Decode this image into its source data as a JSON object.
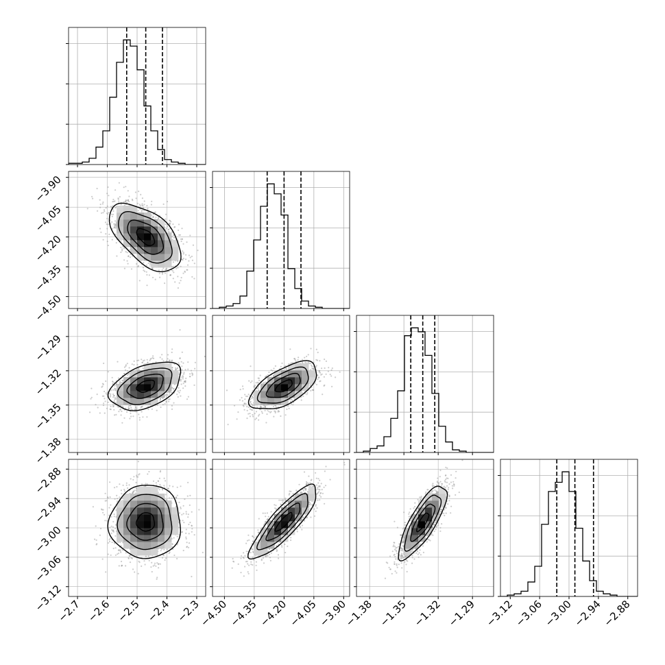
{
  "chart_data": {
    "type": "corner",
    "parameters": [
      {
        "id": "p0",
        "range": [
          -2.73,
          -2.27
        ],
        "ticks": [
          -2.7,
          -2.6,
          -2.5,
          -2.4,
          -2.3
        ],
        "tick_labels": [
          "−2.7",
          "−2.6",
          "−2.5",
          "−2.4",
          "−2.3"
        ],
        "mean": -2.471,
        "quantiles": [
          -2.535,
          -2.471,
          -2.415
        ],
        "hist_counts": [
          1,
          1,
          2,
          5,
          14,
          27,
          54,
          82,
          100,
          95,
          76,
          47,
          27,
          12,
          4,
          2,
          1,
          0,
          0,
          0
        ]
      },
      {
        "id": "p1",
        "range": [
          -4.56,
          -3.87
        ],
        "ticks": [
          -4.5,
          -4.35,
          -4.2,
          -4.05,
          -3.9
        ],
        "tick_labels": [
          "−4.50",
          "−4.35",
          "−4.20",
          "−4.05",
          "−3.90"
        ],
        "mean": -4.2,
        "quantiles": [
          -4.285,
          -4.2,
          -4.115
        ],
        "hist_counts": [
          0,
          1,
          2,
          4,
          10,
          30,
          55,
          82,
          100,
          92,
          75,
          32,
          16,
          6,
          2,
          1,
          0,
          0,
          0,
          0
        ]
      },
      {
        "id": "p2",
        "range": [
          -1.3915,
          -1.2715
        ],
        "ticks": [
          -1.38,
          -1.35,
          -1.32,
          -1.29
        ],
        "tick_labels": [
          "−1.38",
          "−1.35",
          "−1.32",
          "−1.29"
        ],
        "mean": -1.3335,
        "quantiles": [
          -1.344,
          -1.3335,
          -1.323
        ],
        "hist_counts": [
          0,
          1,
          3,
          5,
          12,
          26,
          47,
          89,
          95,
          92,
          74,
          45,
          20,
          8,
          2,
          1,
          0,
          0,
          0,
          0
        ]
      },
      {
        "id": "p3",
        "range": [
          -3.14,
          -2.86
        ],
        "ticks": [
          -3.12,
          -3.06,
          -3.0,
          -2.94,
          -2.88
        ],
        "tick_labels": [
          "−3.12",
          "−3.06",
          "−3.00",
          "−2.94",
          "−2.88"
        ],
        "mean": -2.988,
        "quantiles": [
          -3.025,
          -2.988,
          -2.95
        ],
        "hist_counts": [
          0,
          1,
          2,
          4,
          11,
          23,
          55,
          80,
          87,
          95,
          80,
          52,
          27,
          12,
          4,
          2,
          1,
          0,
          0,
          0
        ]
      }
    ],
    "correlations": [
      [
        1.0,
        -0.55,
        0.42,
        0.02
      ],
      [
        -0.55,
        1.0,
        0.6,
        0.86
      ],
      [
        0.42,
        0.6,
        1.0,
        0.8
      ],
      [
        0.02,
        0.86,
        0.8,
        1.0
      ]
    ],
    "levels_sigma": [
      0.5,
      1.0,
      1.5,
      2.0
    ],
    "quantile_levels": [
      0.16,
      0.5,
      0.84
    ],
    "grid": true,
    "colors": {
      "hist_line": "#000000",
      "quantile_line": "#000000",
      "grid": "#b0b0b0",
      "scatter_points": "#9a9a9a",
      "density_dark": "#000000",
      "density_light": "#ffffff"
    }
  }
}
